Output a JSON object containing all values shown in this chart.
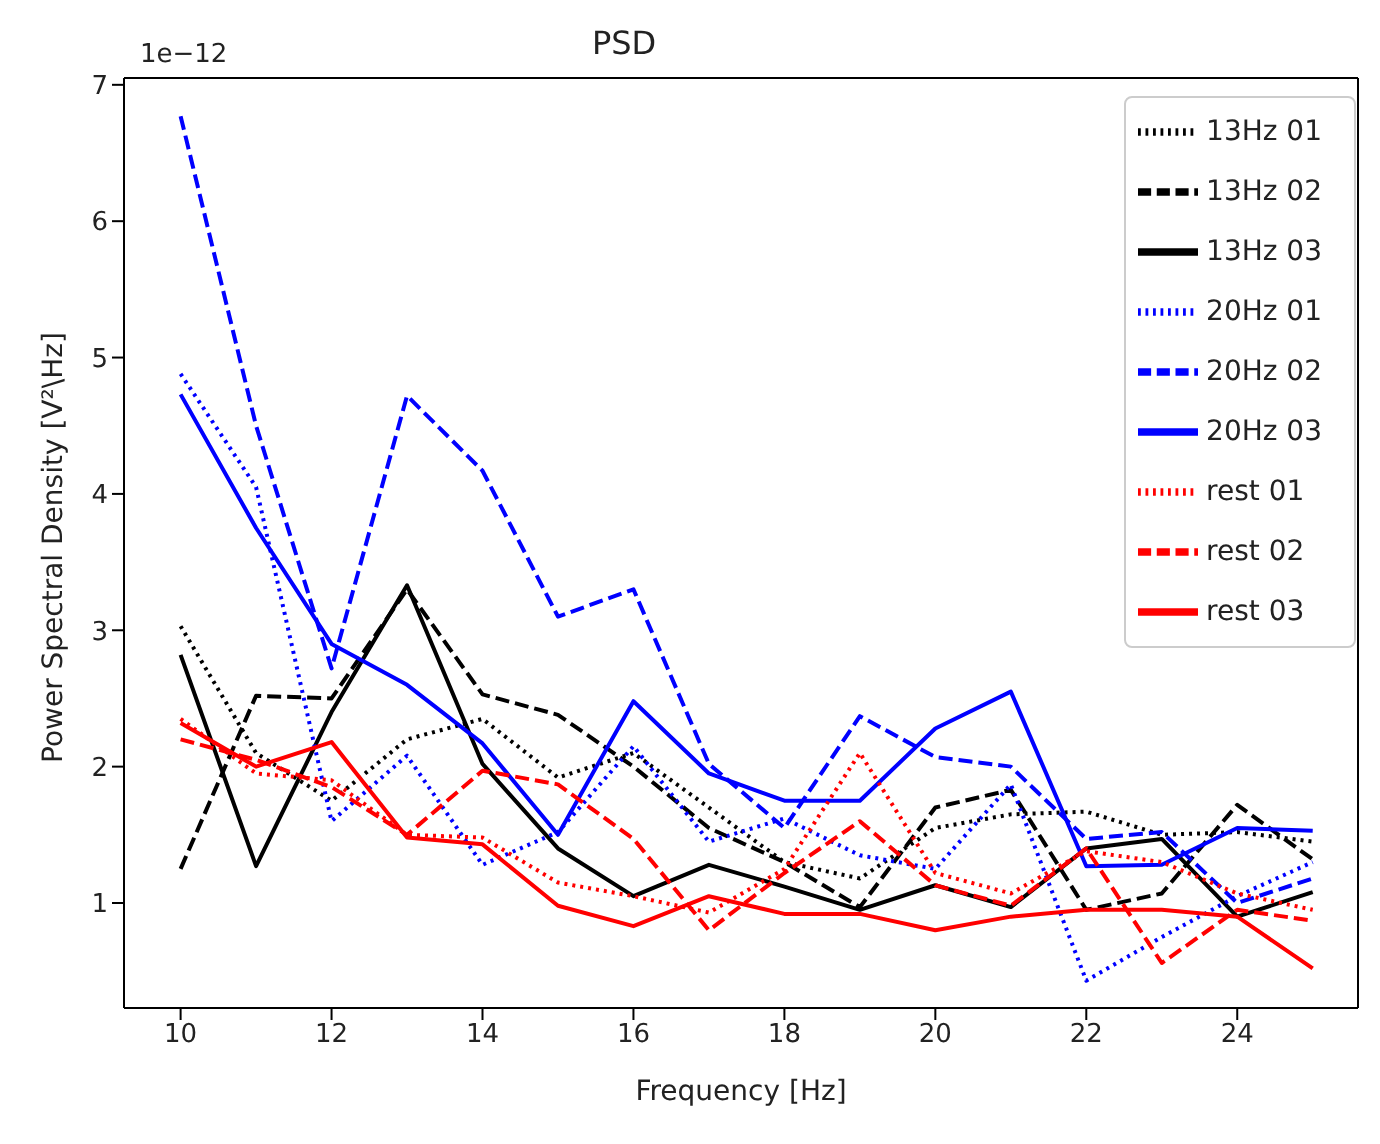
{
  "chart_data": {
    "type": "line",
    "title": "PSD",
    "xlabel": "Frequency [Hz]",
    "ylabel": "Power Spectral Density [V²\\Hz]",
    "annotations": [
      "1e−12"
    ],
    "x": [
      10,
      11,
      12,
      13,
      14,
      15,
      16,
      17,
      18,
      19,
      20,
      21,
      22,
      23,
      24,
      25
    ],
    "xlim": [
      9.25,
      25.6
    ],
    "xticks": [
      10,
      12,
      14,
      16,
      18,
      20,
      22,
      24
    ],
    "ylim": [
      0.23,
      7.05
    ],
    "yticks": [
      1,
      2,
      3,
      4,
      5,
      6,
      7
    ],
    "grid": false,
    "legend": "top right",
    "marker": "none",
    "series": [
      {
        "name": "13Hz 01",
        "color": "#000000",
        "line_style": "dotted",
        "values": [
          3.03,
          2.1,
          1.75,
          2.2,
          2.35,
          1.92,
          2.1,
          1.7,
          1.3,
          1.18,
          1.55,
          1.65,
          1.67,
          1.5,
          1.52,
          1.45
        ]
      },
      {
        "name": "13Hz 02",
        "color": "#000000",
        "line_style": "dashed",
        "values": [
          1.25,
          2.52,
          2.5,
          3.3,
          2.53,
          2.38,
          2.0,
          1.55,
          1.3,
          0.97,
          1.7,
          1.83,
          0.95,
          1.07,
          1.72,
          1.32
        ]
      },
      {
        "name": "13Hz 03",
        "color": "#000000",
        "line_style": "solid",
        "values": [
          2.82,
          1.27,
          2.4,
          3.33,
          2.02,
          1.4,
          1.05,
          1.28,
          1.12,
          0.95,
          1.13,
          0.97,
          1.4,
          1.47,
          0.9,
          1.08
        ]
      },
      {
        "name": "20Hz 01",
        "color": "#0000ff",
        "line_style": "dotted",
        "values": [
          4.88,
          4.05,
          1.6,
          2.08,
          1.28,
          1.52,
          2.15,
          1.45,
          1.62,
          1.35,
          1.25,
          1.87,
          0.43,
          0.75,
          1.05,
          1.3
        ]
      },
      {
        "name": "20Hz 02",
        "color": "#0000ff",
        "line_style": "dashed",
        "values": [
          6.77,
          4.5,
          2.72,
          4.72,
          4.17,
          3.1,
          3.3,
          2.02,
          1.55,
          2.37,
          2.07,
          2.0,
          1.47,
          1.52,
          1.0,
          1.18
        ]
      },
      {
        "name": "20Hz 03",
        "color": "#0000ff",
        "line_style": "solid",
        "values": [
          4.73,
          3.75,
          2.9,
          2.6,
          2.17,
          1.5,
          2.48,
          1.95,
          1.75,
          1.75,
          2.28,
          2.55,
          1.27,
          1.28,
          1.55,
          1.53
        ]
      },
      {
        "name": "rest 01",
        "color": "#ff0000",
        "line_style": "dotted",
        "values": [
          2.35,
          1.95,
          1.9,
          1.5,
          1.48,
          1.15,
          1.05,
          0.93,
          1.25,
          2.1,
          1.22,
          1.07,
          1.38,
          1.3,
          1.07,
          0.95
        ]
      },
      {
        "name": "rest 02",
        "color": "#ff0000",
        "line_style": "dashed",
        "values": [
          2.2,
          2.05,
          1.85,
          1.5,
          1.97,
          1.87,
          1.47,
          0.8,
          1.22,
          1.6,
          1.13,
          0.98,
          1.4,
          0.56,
          0.95,
          0.87
        ]
      },
      {
        "name": "rest 03",
        "color": "#ff0000",
        "line_style": "solid",
        "values": [
          2.32,
          2.0,
          2.18,
          1.48,
          1.43,
          0.98,
          0.83,
          1.05,
          0.92,
          0.92,
          0.8,
          0.9,
          0.95,
          0.95,
          0.9,
          0.52
        ]
      }
    ]
  }
}
